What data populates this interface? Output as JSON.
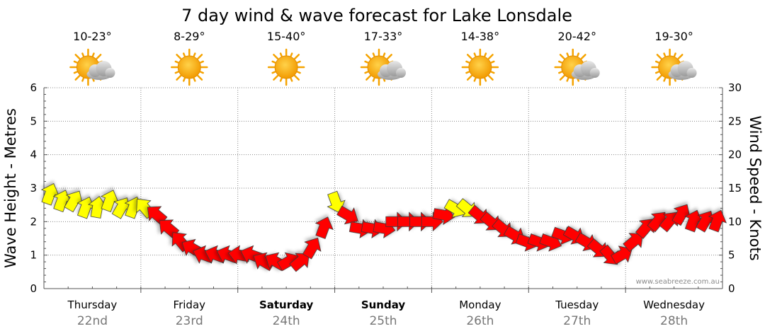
{
  "chart_data": {
    "type": "line",
    "title": "7 day wind & wave forecast for Lake Lonsdale",
    "ylabel_left": "Wave Height - Metres",
    "ylabel_right": "Wind Speed - Knots",
    "ylim_left": [
      0,
      6
    ],
    "ylim_right": [
      0,
      30
    ],
    "yticks_left": [
      "0",
      "1",
      "2",
      "3",
      "4",
      "5",
      "6"
    ],
    "yticks_right": [
      "0",
      "5",
      "10",
      "15",
      "20",
      "25",
      "30"
    ],
    "grid": true,
    "credit": "www.seabreeze.com.au",
    "days": [
      {
        "day": "Thursday",
        "date": "22nd",
        "temp": "10-23°",
        "weather": "partly-cloudy-icon",
        "bold": false
      },
      {
        "day": "Friday",
        "date": "23rd",
        "temp": "8-29°",
        "weather": "sunny-icon",
        "bold": false
      },
      {
        "day": "Saturday",
        "date": "24th",
        "temp": "15-40°",
        "weather": "sunny-icon",
        "bold": true
      },
      {
        "day": "Sunday",
        "date": "25th",
        "temp": "17-33°",
        "weather": "partly-cloudy-icon",
        "bold": true
      },
      {
        "day": "Monday",
        "date": "26th",
        "temp": "14-38°",
        "weather": "sunny-icon",
        "bold": false
      },
      {
        "day": "Tuesday",
        "date": "27th",
        "temp": "20-42°",
        "weather": "partly-cloudy-icon",
        "bold": false
      },
      {
        "day": "Wednesday",
        "date": "28th",
        "temp": "19-30°",
        "weather": "partly-cloudy-icon",
        "bold": false
      }
    ],
    "colors": {
      "strong_wind": "#ff0000",
      "light_wind": "#ffff00",
      "arrow_outline": "#333333"
    },
    "series": [
      {
        "name": "Wind Speed",
        "unit": "knots",
        "x_hours": [
          0,
          3,
          6,
          9,
          12,
          15,
          18,
          21,
          24,
          27,
          30,
          33,
          36,
          39,
          42,
          45,
          48,
          51,
          54,
          57,
          60,
          63,
          66,
          69,
          72,
          75,
          78,
          81,
          84,
          87,
          90,
          93,
          96,
          99,
          102,
          105,
          108,
          111,
          114,
          117,
          120,
          123,
          126,
          129,
          132,
          135,
          138,
          141,
          144,
          147,
          150,
          153,
          156,
          159,
          162,
          165,
          168
        ],
        "values": [
          14,
          13,
          13,
          12,
          12,
          13,
          12,
          12,
          12,
          11,
          9,
          7,
          6,
          5,
          5,
          5,
          5,
          5,
          4,
          4,
          4,
          4,
          6,
          9,
          13,
          11,
          9,
          9,
          9,
          10,
          10,
          10,
          10,
          11,
          12,
          12,
          11,
          10,
          9,
          8,
          7,
          7,
          7,
          8,
          8,
          7,
          6,
          5,
          5,
          7,
          9,
          10,
          10,
          11,
          10,
          10,
          10
        ],
        "direction_deg": [
          200,
          200,
          210,
          200,
          190,
          200,
          210,
          200,
          140,
          130,
          130,
          140,
          120,
          110,
          110,
          110,
          100,
          110,
          120,
          120,
          240,
          230,
          210,
          200,
          340,
          300,
          280,
          280,
          280,
          270,
          270,
          270,
          270,
          280,
          300,
          310,
          310,
          310,
          310,
          300,
          290,
          290,
          290,
          290,
          300,
          300,
          310,
          320,
          240,
          230,
          220,
          220,
          220,
          210,
          200,
          210,
          200
        ]
      }
    ]
  }
}
